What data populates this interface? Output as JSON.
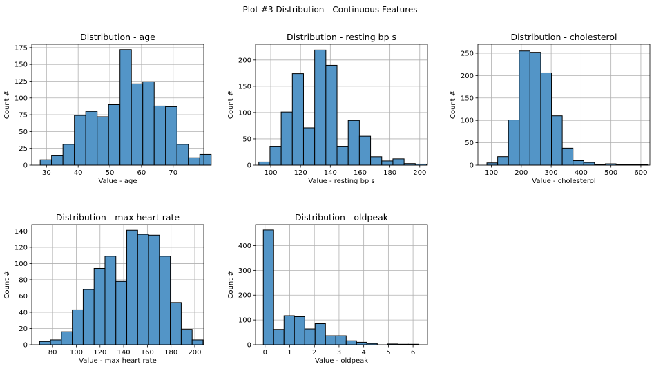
{
  "figure": {
    "title": "Plot #3 Distribution - Continuous Features"
  },
  "chart_data": [
    {
      "type": "bar",
      "title": "Distribution - age",
      "xlabel": "Value - age",
      "ylabel": "Count #",
      "xlim": [
        25.35,
        79.65
      ],
      "ylim": [
        0,
        180
      ],
      "xticks": [
        30,
        40,
        50,
        60,
        70
      ],
      "yticks": [
        0,
        25,
        50,
        75,
        100,
        125,
        150,
        175
      ],
      "grid": true,
      "bin_edges": [
        28,
        31.6,
        35.2,
        38.8,
        42.4,
        46,
        49.6,
        53.2,
        56.8,
        60.4,
        64,
        67.6,
        71.2,
        74.8,
        78.4
      ],
      "values": [
        8,
        14,
        31,
        74,
        80,
        72,
        90,
        172,
        121,
        124,
        88,
        87,
        31,
        11,
        16
      ]
    },
    {
      "type": "bar",
      "title": "Distribution - resting bp s",
      "xlabel": "Value - resting bp s",
      "ylabel": "Count #",
      "xlim": [
        89.8,
        205.2
      ],
      "ylim": [
        0,
        230
      ],
      "xticks": [
        100,
        120,
        140,
        160,
        180,
        200
      ],
      "yticks": [
        0,
        50,
        100,
        150,
        200
      ],
      "grid": true,
      "bin_edges": [
        92,
        99.5,
        107,
        114.5,
        122,
        129.5,
        137,
        144.5,
        152,
        159.5,
        167,
        174.5,
        182,
        189.5,
        197
      ],
      "values": [
        6,
        35,
        101,
        174,
        71,
        219,
        190,
        35,
        85,
        55,
        16,
        8,
        12,
        3,
        2
      ]
    },
    {
      "type": "bar",
      "title": "Distribution - cholesterol",
      "xlabel": "Value - cholesterol",
      "ylabel": "Count #",
      "xlim": [
        54.85,
        630.15
      ],
      "ylim": [
        0,
        270
      ],
      "xticks": [
        100,
        200,
        300,
        400,
        500,
        600
      ],
      "yticks": [
        0,
        50,
        100,
        150,
        200,
        250
      ],
      "grid": true,
      "bin_edges": [
        85,
        121,
        157,
        193,
        229,
        265,
        301,
        337,
        373,
        409,
        445,
        481,
        517,
        553,
        589
      ],
      "values": [
        5,
        19,
        101,
        255,
        252,
        206,
        110,
        38,
        10,
        6,
        1,
        3,
        1,
        1,
        1
      ]
    },
    {
      "type": "bar",
      "title": "Distribution - max heart rate",
      "xlabel": "Value - max heart rate",
      "ylabel": "Count #",
      "xlim": [
        62.4,
        207.6
      ],
      "ylim": [
        0,
        148
      ],
      "xticks": [
        80,
        100,
        120,
        140,
        160,
        180,
        200
      ],
      "yticks": [
        0,
        20,
        40,
        60,
        80,
        100,
        120,
        140
      ],
      "grid": true,
      "bin_edges": [
        69,
        78.2,
        87.4,
        96.6,
        105.8,
        115,
        124.2,
        133.4,
        142.6,
        151.8,
        161,
        170.2,
        179.4,
        188.6,
        197.8
      ],
      "values": [
        4,
        6,
        16,
        43,
        68,
        94,
        109,
        78,
        141,
        136,
        135,
        109,
        52,
        19,
        6
      ]
    },
    {
      "type": "bar",
      "title": "Distribution - oldpeak",
      "xlabel": "Value - oldpeak",
      "ylabel": "Count #",
      "xlim": [
        -0.385,
        6.585
      ],
      "ylim": [
        0,
        485
      ],
      "xticks": [
        0,
        1,
        2,
        3,
        4,
        5,
        6
      ],
      "yticks": [
        0,
        100,
        200,
        300,
        400
      ],
      "grid": true,
      "bin_edges": [
        -0.07,
        0.35,
        0.77,
        1.19,
        1.61,
        2.03,
        2.45,
        2.87,
        3.29,
        3.71,
        4.13,
        4.55,
        4.97,
        5.39,
        5.81
      ],
      "values": [
        463,
        62,
        117,
        113,
        64,
        85,
        36,
        36,
        16,
        10,
        5,
        0,
        3,
        2,
        2
      ]
    }
  ],
  "style": {
    "bar_fill": "#5395c7",
    "bar_edge": "#000000",
    "grid_color": "#b0b0b0"
  }
}
